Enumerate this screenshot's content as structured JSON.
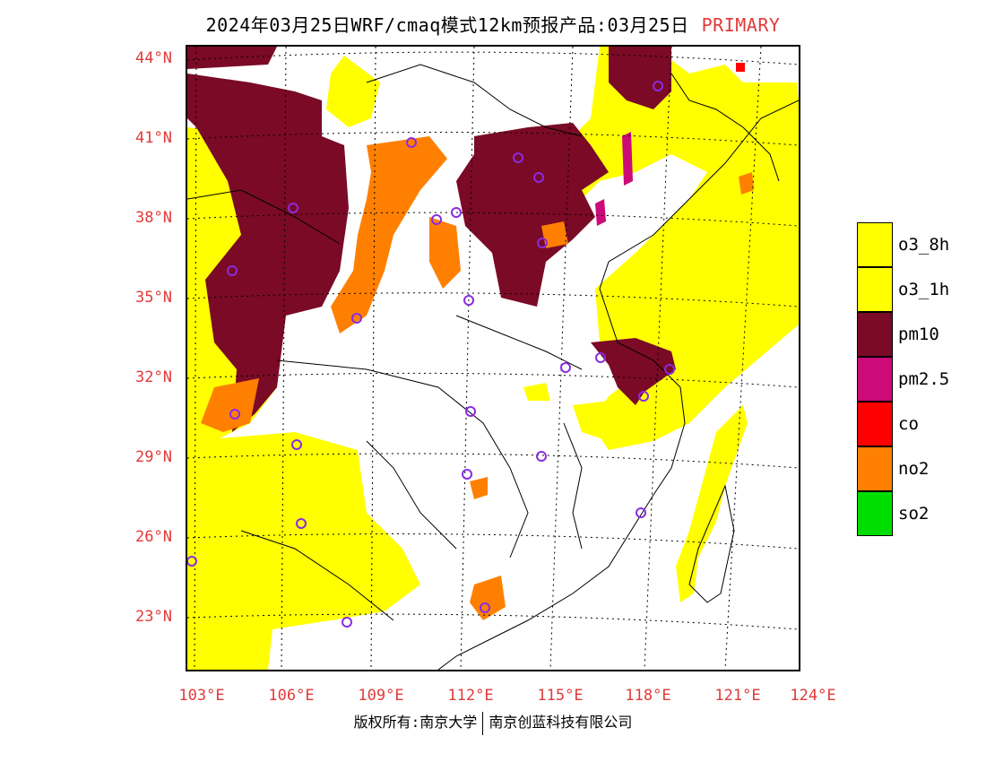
{
  "title": {
    "main": "2024年03月25日WRF/cmaq模式12km预报产品:03月25日",
    "tag": "PRIMARY"
  },
  "axes": {
    "lat_labels": [
      "44°N",
      "41°N",
      "38°N",
      "35°N",
      "32°N",
      "29°N",
      "26°N",
      "23°N"
    ],
    "lon_labels": [
      "103°E",
      "106°E",
      "109°E",
      "112°E",
      "115°E",
      "118°E",
      "121°E",
      "124°E"
    ]
  },
  "legend": {
    "items": [
      {
        "label": "o3_8h",
        "color": "#ffff00"
      },
      {
        "label": "o3_1h",
        "color": "#ffff00"
      },
      {
        "label": "pm10",
        "color": "#7a0a26"
      },
      {
        "label": "pm2.5",
        "color": "#cc0a78"
      },
      {
        "label": "co",
        "color": "#ff0000"
      },
      {
        "label": "no2",
        "color": "#ff8000"
      },
      {
        "label": "so2",
        "color": "#00dd00"
      }
    ]
  },
  "footer": {
    "left": "版权所有:南京大学",
    "right": "南京创蓝科技有限公司"
  },
  "colors": {
    "o3": "#ffff00",
    "pm10": "#7a0a26",
    "pm25": "#cc0a78",
    "co": "#ff0000",
    "no2": "#ff8000",
    "so2": "#00dd00",
    "site_marker": "#8a2be2",
    "label_red": "#e23a3a"
  }
}
